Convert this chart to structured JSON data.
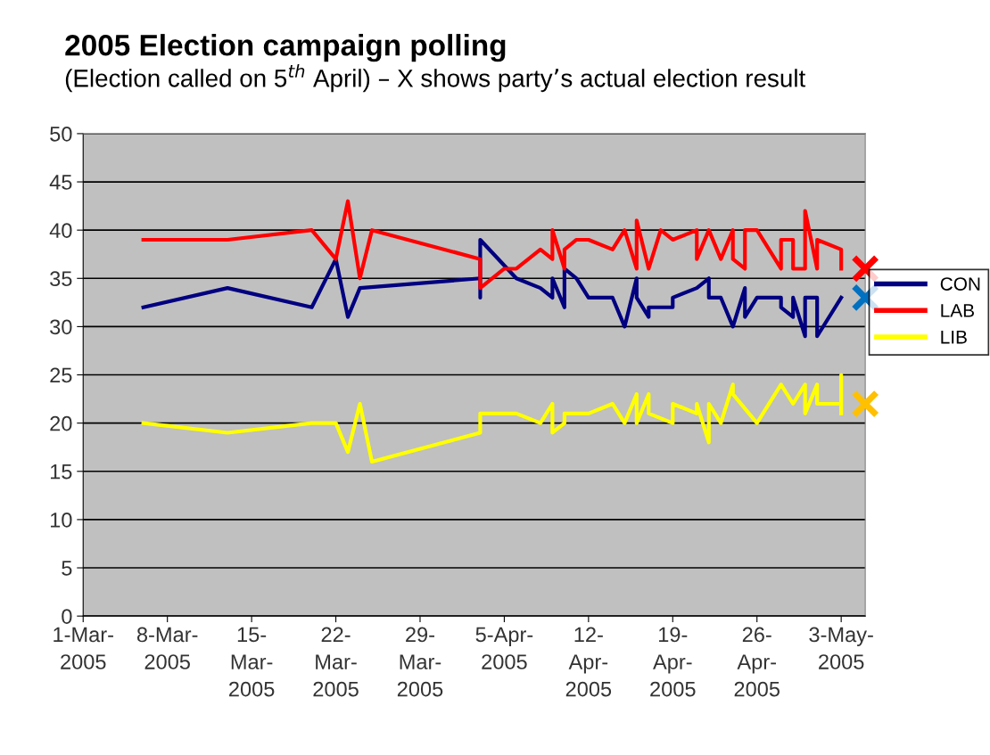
{
  "chart_data": {
    "type": "line",
    "title": "2005 Election campaign polling",
    "subtitle": "(Election called on 5$^{th}$ April) – X shows party’s actual election result",
    "xlim": [
      "2005-03-01",
      "2005-05-05"
    ],
    "xticks": [
      {
        "value": "2005-03-01",
        "label": "1-Mar-\n2005"
      },
      {
        "value": "2005-03-08",
        "label": "8-Mar-\n2005"
      },
      {
        "value": "2005-03-15",
        "label": "15-\nMar-\n2005"
      },
      {
        "value": "2005-03-22",
        "label": "22-\nMar-\n2005"
      },
      {
        "value": "2005-03-29",
        "label": "29-\nMar-\n2005"
      },
      {
        "value": "2005-04-05",
        "label": "5-Apr-\n2005"
      },
      {
        "value": "2005-04-12",
        "label": "12-\nApr-\n2005"
      },
      {
        "value": "2005-04-19",
        "label": "19-\nApr-\n2005"
      },
      {
        "value": "2005-04-26",
        "label": "26-\nApr-\n2005"
      },
      {
        "value": "2005-05-03",
        "label": "3-May-\n2005"
      }
    ],
    "ylim": [
      0,
      50
    ],
    "yticks": [
      0,
      5,
      10,
      15,
      20,
      25,
      30,
      35,
      40,
      45,
      50
    ],
    "grid": "y",
    "legend": "right",
    "marker": "none",
    "line_style": "solid",
    "series": [
      {
        "name": "CON",
        "color": "#000080",
        "x": [
          "2005-03-06",
          "2005-03-13",
          "2005-03-20",
          "2005-03-22",
          "2005-03-23",
          "2005-03-24",
          "2005-04-03",
          "2005-04-03",
          "2005-04-03",
          "2005-04-06",
          "2005-04-08",
          "2005-04-09",
          "2005-04-09",
          "2005-04-10",
          "2005-04-10",
          "2005-04-11",
          "2005-04-12",
          "2005-04-14",
          "2005-04-15",
          "2005-04-16",
          "2005-04-16",
          "2005-04-17",
          "2005-04-17",
          "2005-04-19",
          "2005-04-19",
          "2005-04-21",
          "2005-04-22",
          "2005-04-22",
          "2005-04-23",
          "2005-04-24",
          "2005-04-25",
          "2005-04-25",
          "2005-04-26",
          "2005-04-28",
          "2005-04-28",
          "2005-04-29",
          "2005-04-29",
          "2005-04-30",
          "2005-04-30",
          "2005-05-01",
          "2005-05-01",
          "2005-05-03"
        ],
        "values": [
          32,
          34,
          32,
          37,
          31,
          34,
          35,
          33,
          39,
          35,
          34,
          33,
          35,
          32,
          36,
          35,
          33,
          33,
          30,
          35,
          33,
          31,
          32,
          32,
          33,
          34,
          35,
          33,
          33,
          30,
          34,
          31,
          33,
          33,
          32,
          31,
          33,
          29,
          33,
          33,
          29,
          33
        ]
      },
      {
        "name": "LAB",
        "color": "#ff0000",
        "x": [
          "2005-03-06",
          "2005-03-13",
          "2005-03-20",
          "2005-03-22",
          "2005-03-23",
          "2005-03-24",
          "2005-03-25",
          "2005-04-03",
          "2005-04-03",
          "2005-04-05",
          "2005-04-06",
          "2005-04-08",
          "2005-04-09",
          "2005-04-09",
          "2005-04-10",
          "2005-04-10",
          "2005-04-11",
          "2005-04-12",
          "2005-04-14",
          "2005-04-15",
          "2005-04-16",
          "2005-04-16",
          "2005-04-17",
          "2005-04-18",
          "2005-04-19",
          "2005-04-21",
          "2005-04-21",
          "2005-04-22",
          "2005-04-23",
          "2005-04-24",
          "2005-04-24",
          "2005-04-25",
          "2005-04-25",
          "2005-04-26",
          "2005-04-28",
          "2005-04-28",
          "2005-04-29",
          "2005-04-29",
          "2005-04-30",
          "2005-04-30",
          "2005-05-01",
          "2005-05-01",
          "2005-05-03",
          "2005-05-03"
        ],
        "values": [
          39,
          39,
          40,
          37,
          43,
          35,
          40,
          37,
          34,
          36,
          36,
          38,
          37,
          40,
          36,
          38,
          39,
          39,
          38,
          40,
          36,
          41,
          36,
          40,
          39,
          40,
          37,
          40,
          37,
          40,
          37,
          36,
          40,
          40,
          36,
          39,
          39,
          36,
          36,
          42,
          36,
          39,
          38,
          36
        ]
      },
      {
        "name": "LIB",
        "color": "#ffff00",
        "x": [
          "2005-03-06",
          "2005-03-13",
          "2005-03-20",
          "2005-03-22",
          "2005-03-23",
          "2005-03-24",
          "2005-03-25",
          "2005-04-03",
          "2005-04-03",
          "2005-04-06",
          "2005-04-08",
          "2005-04-09",
          "2005-04-09",
          "2005-04-10",
          "2005-04-10",
          "2005-04-12",
          "2005-04-14",
          "2005-04-15",
          "2005-04-16",
          "2005-04-16",
          "2005-04-17",
          "2005-04-17",
          "2005-04-19",
          "2005-04-19",
          "2005-04-21",
          "2005-04-21",
          "2005-04-22",
          "2005-04-22",
          "2005-04-23",
          "2005-04-24",
          "2005-04-24",
          "2005-04-26",
          "2005-04-28",
          "2005-04-29",
          "2005-04-30",
          "2005-04-30",
          "2005-05-01",
          "2005-05-01",
          "2005-05-03",
          "2005-05-03",
          "2005-05-03"
        ],
        "values": [
          20,
          19,
          20,
          20,
          17,
          22,
          16,
          19,
          21,
          21,
          20,
          22,
          19,
          20,
          21,
          21,
          22,
          20,
          23,
          20,
          23,
          21,
          20,
          22,
          21,
          22,
          18,
          22,
          20,
          24,
          23,
          20,
          24,
          22,
          24,
          21,
          24,
          22,
          22,
          25,
          21
        ]
      },
      {
        "type": "scatter",
        "marker": "cross",
        "color": "#ff0000",
        "x": [
          "2005-05-05"
        ],
        "values": [
          36
        ]
      },
      {
        "type": "scatter",
        "marker": "cross",
        "color": "#0070c0",
        "x": [
          "2005-05-05"
        ],
        "values": [
          33
        ]
      },
      {
        "type": "scatter",
        "marker": "cross",
        "color": "#ffc000",
        "x": [
          "2005-05-05"
        ],
        "values": [
          22
        ]
      }
    ]
  }
}
